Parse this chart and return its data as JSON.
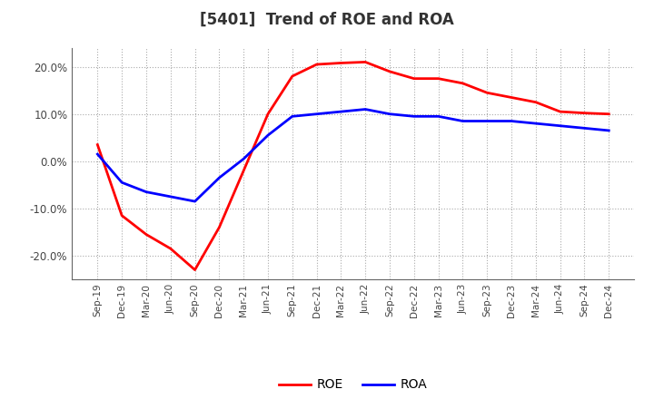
{
  "title": "[5401]  Trend of ROE and ROA",
  "title_fontsize": 12,
  "title_color": "#333333",
  "background_color": "#ffffff",
  "plot_background_color": "#ffffff",
  "grid_color": "#aaaaaa",
  "roe_color": "#ff0000",
  "roa_color": "#0000ff",
  "line_width": 2.0,
  "x_labels": [
    "Sep-19",
    "Dec-19",
    "Mar-20",
    "Jun-20",
    "Sep-20",
    "Dec-20",
    "Mar-21",
    "Jun-21",
    "Sep-21",
    "Dec-21",
    "Mar-22",
    "Jun-22",
    "Sep-22",
    "Dec-22",
    "Mar-23",
    "Jun-23",
    "Sep-23",
    "Dec-23",
    "Mar-24",
    "Jun-24",
    "Sep-24",
    "Dec-24"
  ],
  "roe_values": [
    3.5,
    -11.5,
    -15.5,
    -18.5,
    -23.0,
    -14.0,
    -2.0,
    10.0,
    18.0,
    20.5,
    20.8,
    21.0,
    19.0,
    17.5,
    17.5,
    16.5,
    14.5,
    13.5,
    12.5,
    10.5,
    10.2,
    10.0
  ],
  "roa_values": [
    1.5,
    -4.5,
    -6.5,
    -7.5,
    -8.5,
    -3.5,
    0.5,
    5.5,
    9.5,
    10.0,
    10.5,
    11.0,
    10.0,
    9.5,
    9.5,
    8.5,
    8.5,
    8.5,
    8.0,
    7.5,
    7.0,
    6.5
  ],
  "ylim": [
    -25,
    24
  ],
  "yticks": [
    -20,
    -10,
    0,
    10,
    20
  ],
  "ytick_labels": [
    "-20.0%",
    "-10.0%",
    "0.0%",
    "10.0%",
    "20.0%"
  ],
  "legend_labels": [
    "ROE",
    "ROA"
  ],
  "legend_ncol": 2,
  "spine_color": "#666666"
}
